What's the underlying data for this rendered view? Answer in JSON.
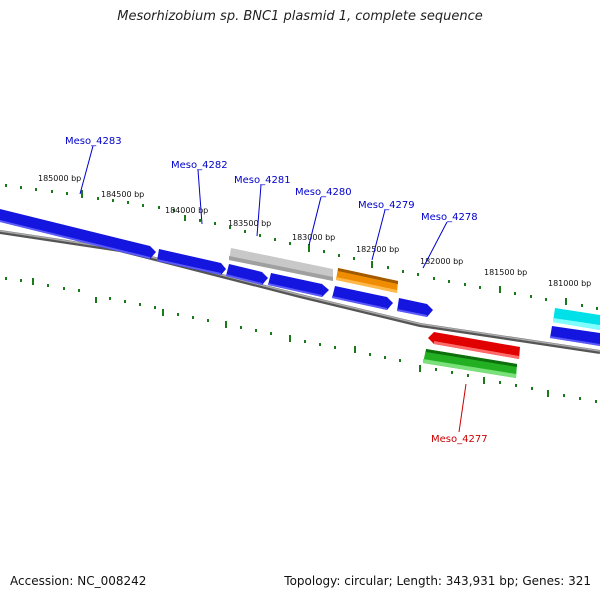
{
  "title": "Mesorhizobium sp. BNC1 plasmid 1, complete sequence",
  "footer": {
    "accession": "Accession: NC_008242",
    "summary": "Topology: circular; Length: 343,931 bp; Genes: 321"
  },
  "scale_labels": [
    "185000 bp",
    "184500 bp",
    "184000 bp",
    "183500 bp",
    "183000 bp",
    "182500 bp",
    "182000 bp",
    "181500 bp",
    "181000 bp"
  ],
  "gene_labels": [
    {
      "text": "Meso_4283",
      "color": "#0000cc"
    },
    {
      "text": "Meso_4282",
      "color": "#0000cc"
    },
    {
      "text": "Meso_4281",
      "color": "#0000cc"
    },
    {
      "text": "Meso_4280",
      "color": "#0000cc"
    },
    {
      "text": "Meso_4279",
      "color": "#0000cc"
    },
    {
      "text": "Meso_4278",
      "color": "#0000cc"
    },
    {
      "text": "Meso_4277",
      "color": "#cc0000"
    }
  ],
  "colors": {
    "backbone": "#808080",
    "ticks": "#1a7a1a",
    "blue_feature": "#1515e0",
    "gray_feature": "#b8b8b8",
    "orange_feature": "#f08c00",
    "cyan_feature": "#00e0e8",
    "red_feature": "#e00000",
    "green_feature": "#22b022"
  }
}
